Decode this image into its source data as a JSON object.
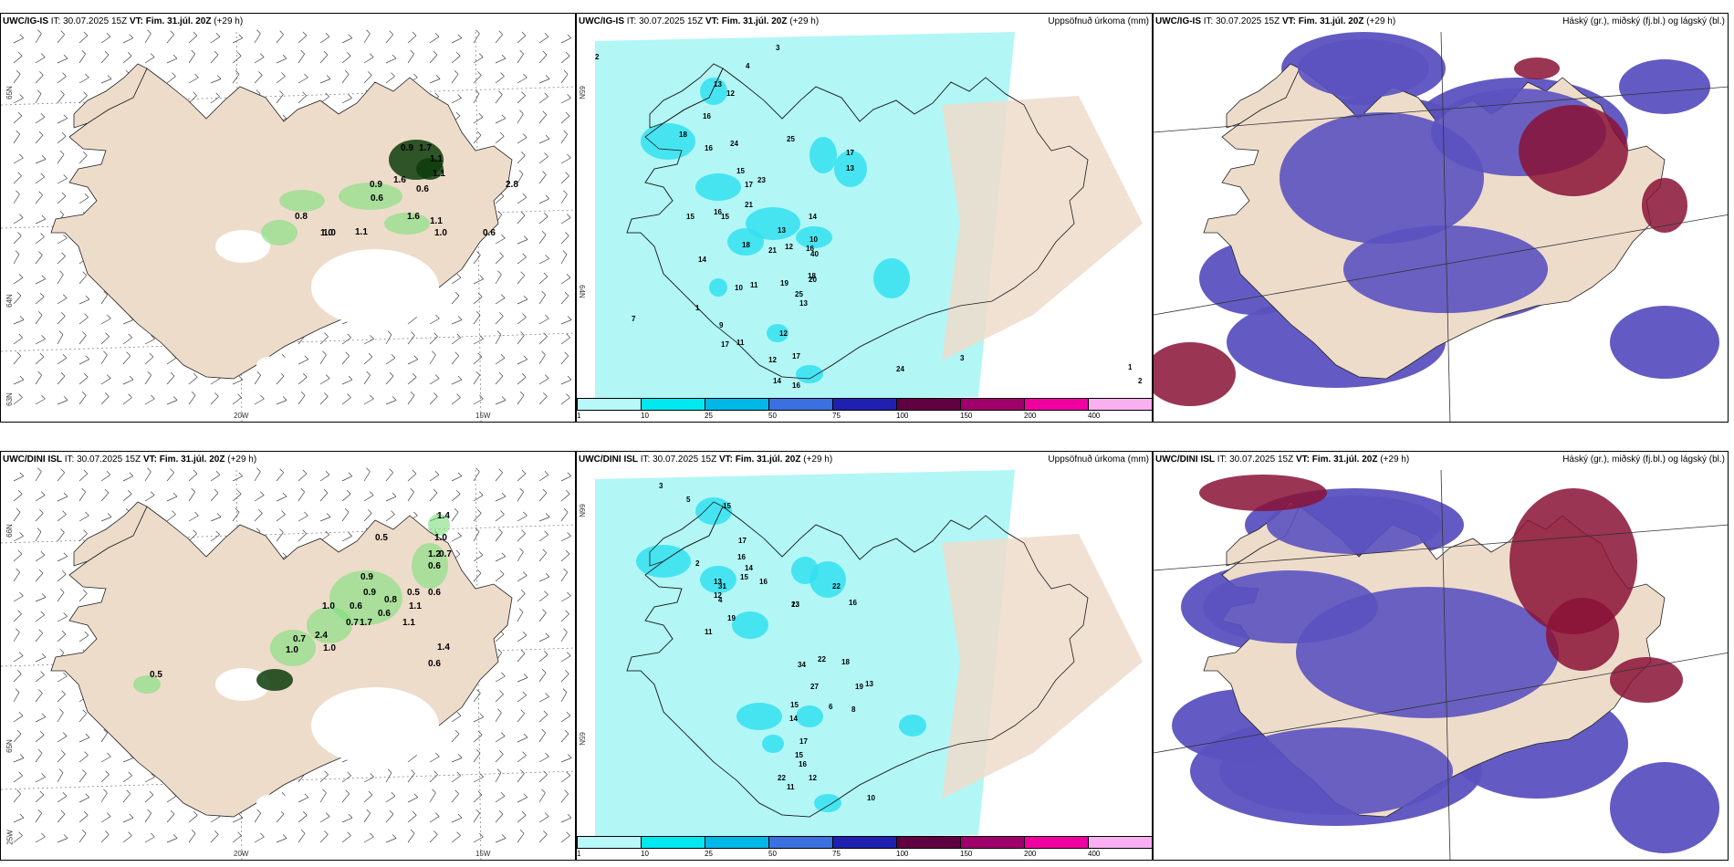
{
  "panels": [
    {
      "model": "UWC/IG-IS",
      "it_label": "IT:",
      "it": "30.07.2025 15Z",
      "vt_label": "VT:",
      "vt": "Fim. 31.júl. 20Z",
      "lead": "(+29 h)",
      "right_title": "",
      "lon_labels": [
        "20W",
        "15W"
      ],
      "lat_labels": [
        "65N",
        "64N",
        "63N"
      ],
      "values": [
        "0.9",
        "1.7",
        "1.1",
        "0.6",
        "1.6",
        "1.1",
        "0.9",
        "0.6",
        "1.6",
        "1.1",
        "1.0",
        "0.8",
        "1.0",
        "1.1",
        "1.0",
        "0.6",
        "2.8"
      ]
    },
    {
      "model": "UWC/IG-IS",
      "it_label": "IT:",
      "it": "30.07.2025 15Z",
      "vt_label": "VT:",
      "vt": "Fim. 31.júl. 20Z",
      "lead": "(+29 h)",
      "right_title": "Uppsöfnuð úrkoma (mm)",
      "lat_labels": [
        "65N",
        "64N"
      ],
      "values": [
        "2",
        "4",
        "3",
        "1",
        "13",
        "12",
        "16",
        "18",
        "16",
        "24",
        "15",
        "17",
        "21",
        "16",
        "15",
        "23",
        "25",
        "17",
        "15",
        "14",
        "13",
        "16",
        "13",
        "18",
        "12",
        "21",
        "14",
        "7",
        "9",
        "10",
        "40",
        "18",
        "19",
        "20",
        "25",
        "13",
        "10",
        "11",
        "12",
        "17",
        "11",
        "12",
        "17",
        "14",
        "16",
        "24",
        "3",
        "2",
        "1"
      ]
    },
    {
      "model": "UWC/IG-IS",
      "it_label": "IT:",
      "it": "30.07.2025 15Z",
      "vt_label": "VT:",
      "vt": "Fim. 31.júl. 20Z",
      "lead": "(+29 h)",
      "right_title": "Háský (gr.), miðský (fj.bl.) og lágský (bl.)"
    },
    {
      "model": "UWC/DINI ISL",
      "it_label": "IT:",
      "it": "30.07.2025 15Z",
      "vt_label": "VT:",
      "vt": "Fim. 31.júl. 20Z",
      "lead": "(+29 h)",
      "right_title": "",
      "lon_labels": [
        "20W",
        "15W"
      ],
      "lat_labels": [
        "66N",
        "65N",
        "25W"
      ],
      "values": [
        "1.4",
        "0.5",
        "1.0",
        "1.2",
        "0.7",
        "0.6",
        "0.9",
        "0.9",
        "0.5",
        "0.6",
        "0.8",
        "0.6",
        "1.1",
        "1.0",
        "0.6",
        "0.7",
        "1.7",
        "1.1",
        "2.4",
        "0.7",
        "1.0",
        "1.0",
        "1.4",
        "0.6",
        "0.5"
      ]
    },
    {
      "model": "UWC/DINI ISL",
      "it_label": "IT:",
      "it": "30.07.2025 15Z",
      "vt_label": "VT:",
      "vt": "Fim. 31.júl. 20Z",
      "lead": "(+29 h)",
      "right_title": "Uppsöfnuð úrkoma (mm)",
      "lat_labels": [
        "66N",
        "65N"
      ],
      "values": [
        "3",
        "5",
        "2",
        "4",
        "15",
        "17",
        "16",
        "14",
        "15",
        "31",
        "13",
        "12",
        "16",
        "19",
        "11",
        "23",
        "13",
        "22",
        "16",
        "18",
        "22",
        "19",
        "27",
        "34",
        "15",
        "14",
        "17",
        "15",
        "16",
        "12",
        "22",
        "11",
        "13",
        "6",
        "8",
        "10"
      ]
    },
    {
      "model": "UWC/DINI ISL",
      "it_label": "IT:",
      "it": "30.07.2025 15Z",
      "vt_label": "VT:",
      "vt": "Fim. 31.júl. 20Z",
      "lead": "(+29 h)",
      "right_title": "Háský (gr.), miðský (fj.bl.) og lágský (bl.)"
    }
  ],
  "colorbar": {
    "labels": [
      "1",
      "10",
      "25",
      "50",
      "75",
      "100",
      "150",
      "200",
      "400"
    ],
    "colors": [
      "#b8f8f8",
      "#00e8f0",
      "#00b8e8",
      "#3a70e0",
      "#2020b0",
      "#600040",
      "#a0006a",
      "#f000a0",
      "#f8b0f0"
    ]
  },
  "colors": {
    "land": "#eedccb",
    "precip_light": "#b2f6f6",
    "precip_mid": "#33e0f0",
    "cloud_low": "#5b52c0",
    "cloud_high": "#8a1236",
    "green": "#7be07b",
    "green_dark": "#0c3c0c"
  }
}
